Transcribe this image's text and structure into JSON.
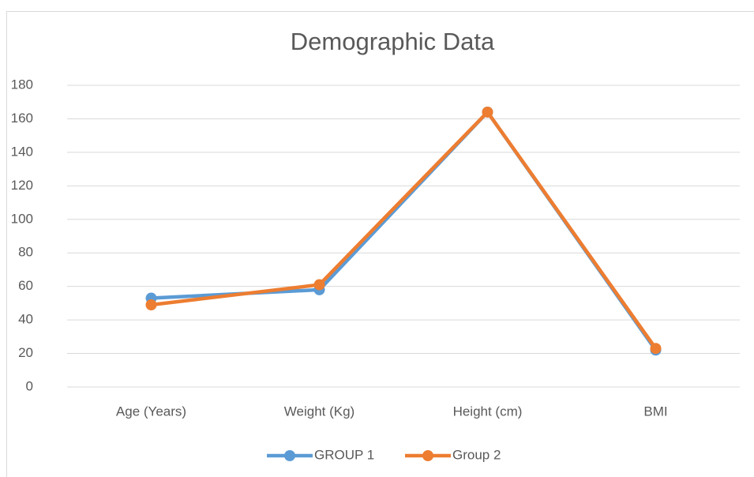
{
  "chart_data": {
    "type": "line",
    "title": "Demographic Data",
    "categories": [
      "Age (Years)",
      "Weight (Kg)",
      "Height (cm)",
      "BMI"
    ],
    "series": [
      {
        "name": "GROUP 1",
        "color": "#5b9bd5",
        "values": [
          53,
          58,
          164,
          22
        ]
      },
      {
        "name": "Group 2",
        "color": "#ed7d31",
        "values": [
          49,
          61,
          164,
          23
        ]
      }
    ],
    "ylim": [
      0,
      180
    ],
    "yticks": [
      0,
      20,
      40,
      60,
      80,
      100,
      120,
      140,
      160,
      180
    ],
    "grid": true,
    "legend": "bottom"
  }
}
